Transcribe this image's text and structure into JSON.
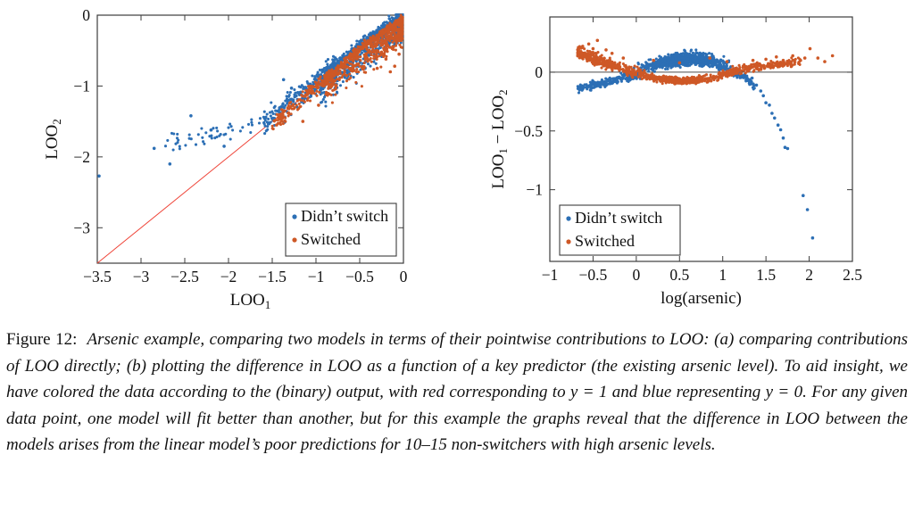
{
  "caption": {
    "label": "Figure 12:",
    "body": "Arsenic example, comparing two models in terms of their pointwise contributions to LOO: (a) comparing contributions of LOO directly; (b) plotting the difference in LOO as a function of a key predictor (the existing arsenic level). To aid insight, we have colored the data according to the (binary) output, with red corresponding to y = 1 and blue representing y = 0. For any given data point, one model will fit better than another, but for this example the graphs reveal that the difference in LOO between the models arises from the linear model’s poor predictions for 10–15 non-switchers with high arsenic levels."
  },
  "colors": {
    "blue": "#2C6FB5",
    "orange": "#CE5826",
    "red_line": "#EF4438",
    "zero_line": "#4a4a4a",
    "axis": "#3c3c3c"
  },
  "chart_data": [
    {
      "type": "scatter",
      "panel": "a",
      "xlabel_parts": [
        {
          "text": "LOO"
        },
        {
          "text": "1",
          "sub": true
        }
      ],
      "ylabel_parts": [
        {
          "text": "LOO"
        },
        {
          "text": "2",
          "sub": true
        }
      ],
      "xlim": [
        -3.5,
        0
      ],
      "ylim": [
        -3.5,
        0
      ],
      "x_ticks": {
        "values": [
          -3.5,
          -3,
          -2.5,
          -2,
          -1.5,
          -1,
          -0.5,
          0
        ],
        "labels": [
          "−3.5",
          "−3",
          "−2.5",
          "−2",
          "−1.5",
          "−1",
          "−0.5",
          "0"
        ]
      },
      "y_ticks": {
        "values": [
          0,
          -1,
          -2,
          -3
        ],
        "labels": [
          "0",
          "−1",
          "−2",
          "−3"
        ]
      },
      "reference_line": {
        "kind": "identity",
        "x1": -3.5,
        "y1": -3.5,
        "x2": 0,
        "y2": 0,
        "color_key": "red_line"
      },
      "legend": {
        "position": "bottom-right",
        "entries": [
          {
            "label": "Didn’t switch",
            "color_key": "blue"
          },
          {
            "label": "Switched",
            "color_key": "orange"
          }
        ]
      },
      "series": [
        {
          "name": "Didn't switch",
          "color_key": "blue",
          "seed": 11,
          "clouds": [
            {
              "count": 50,
              "x_range": [
                -2.75,
                -1.55
              ],
              "bias": "uniform",
              "power": 1,
              "curve": [
                [
                  -2.75,
                  -1.85
                ],
                [
                  -2.3,
                  -1.7
                ],
                [
                  -1.9,
                  -1.62
                ],
                [
                  -1.55,
                  -1.45
                ]
              ],
              "jitter_up": 0.13,
              "jitter_down": 0.13
            },
            {
              "count": 230,
              "x_range": [
                -1.6,
                -0.8
              ],
              "bias": "end",
              "power": 1.2,
              "curve": [
                [
                  -1.6,
                  -1.52
                ],
                [
                  -1.2,
                  -1.14
                ],
                [
                  -0.8,
                  -0.76
                ]
              ],
              "jitter_up": 0.14,
              "jitter_down": 0.14
            },
            {
              "count": 850,
              "x_range": [
                -0.95,
                -0.01
              ],
              "bias": "end",
              "power": 1.6,
              "curve": [
                [
                  -0.95,
                  -0.9
                ],
                [
                  -0.5,
                  -0.46
                ],
                [
                  -0.01,
                  -0.03
                ]
              ],
              "jitter_up": 0.09,
              "jitter_down": 0.3
            }
          ],
          "outliers": [
            [
              -3.48,
              -2.27
            ],
            [
              -2.85,
              -1.88
            ],
            [
              -2.67,
              -2.1
            ],
            [
              -2.43,
              -1.42
            ],
            [
              -2.2,
              -1.62
            ],
            [
              -2.05,
              -1.85
            ],
            [
              -1.37,
              -0.91
            ],
            [
              -1.28,
              -1.03
            ]
          ]
        },
        {
          "name": "Switched",
          "color_key": "orange",
          "seed": 22,
          "clouds": [
            {
              "count": 180,
              "x_range": [
                -1.5,
                -0.8
              ],
              "bias": "end",
              "power": 1.2,
              "curve": [
                [
                  -1.5,
                  -1.53
                ],
                [
                  -1.1,
                  -1.12
                ],
                [
                  -0.8,
                  -0.82
                ]
              ],
              "jitter_up": 0.08,
              "jitter_down": 0.1
            },
            {
              "count": 800,
              "x_range": [
                -0.9,
                -0.01
              ],
              "bias": "end",
              "power": 1.5,
              "curve": [
                [
                  -0.9,
                  -0.93
                ],
                [
                  -0.5,
                  -0.5
                ],
                [
                  -0.01,
                  -0.08
                ]
              ],
              "jitter_up": 0.06,
              "jitter_down": 0.28
            }
          ],
          "outliers": [
            [
              -1.45,
              -1.55
            ],
            [
              -1.15,
              -1.5
            ],
            [
              -0.58,
              -0.75
            ],
            [
              -0.97,
              -1.27
            ],
            [
              -0.2,
              -0.62
            ],
            [
              -0.1,
              -0.72
            ],
            [
              -0.05,
              -0.55
            ],
            [
              -0.15,
              -0.8
            ],
            [
              -0.3,
              -0.75
            ]
          ]
        }
      ]
    },
    {
      "type": "scatter",
      "panel": "b",
      "xlabel_parts": [
        {
          "text": "log(arsenic)"
        }
      ],
      "ylabel_parts": [
        {
          "text": "LOO"
        },
        {
          "text": "1",
          "sub": true
        },
        {
          "text": " − "
        },
        {
          "text": "LOO"
        },
        {
          "text": "2",
          "sub": true
        }
      ],
      "xlim": [
        -1,
        2.5
      ],
      "ylim": [
        -1.61,
        0.47
      ],
      "x_ticks": {
        "values": [
          -1,
          -0.5,
          0,
          0.5,
          1,
          1.5,
          2,
          2.5
        ],
        "labels": [
          "−1",
          "−0.5",
          "0",
          "0.5",
          "1",
          "1.5",
          "2",
          "2.5"
        ]
      },
      "y_ticks": {
        "values": [
          0,
          -0.5,
          -1
        ],
        "labels": [
          "0",
          "−0.5",
          "−1"
        ]
      },
      "reference_line": {
        "kind": "hline",
        "y": 0,
        "color_key": "zero_line"
      },
      "legend": {
        "position": "bottom-left",
        "entries": [
          {
            "label": "Didn’t switch",
            "color_key": "blue"
          },
          {
            "label": "Switched",
            "color_key": "orange"
          }
        ]
      },
      "series": [
        {
          "name": "Didn't switch",
          "color_key": "blue",
          "seed": 33,
          "clouds": [
            {
              "count": 230,
              "x_range": [
                -0.68,
                0.05
              ],
              "bias": "uniform",
              "power": 1,
              "curve": [
                [
                  -0.68,
                  -0.14
                ],
                [
                  -0.4,
                  -0.1
                ],
                [
                  -0.15,
                  -0.05
                ],
                [
                  0.05,
                  -0.01
                ]
              ],
              "jitter_up": 0.03,
              "jitter_down": 0.03
            },
            {
              "count": 800,
              "x_range": [
                -0.05,
                1.2
              ],
              "bias": "center",
              "power": 1,
              "curve": [
                [
                  -0.05,
                  0.0
                ],
                [
                  0.2,
                  0.06
                ],
                [
                  0.5,
                  0.1
                ],
                [
                  0.7,
                  0.11
                ],
                [
                  0.9,
                  0.09
                ],
                [
                  1.05,
                  0.04
                ],
                [
                  1.2,
                  -0.02
                ]
              ],
              "jitter_up": 0.05,
              "jitter_down": 0.04
            },
            {
              "count": 60,
              "x_range": [
                1.12,
                1.38
              ],
              "bias": "uniform",
              "power": 1,
              "curve": [
                [
                  1.12,
                  0.0
                ],
                [
                  1.25,
                  -0.04
                ],
                [
                  1.38,
                  -0.13
                ]
              ],
              "jitter_up": 0.025,
              "jitter_down": 0.025
            }
          ],
          "outliers": [
            [
              1.34,
              -0.05
            ],
            [
              1.39,
              -0.11
            ],
            [
              1.44,
              -0.16
            ],
            [
              1.47,
              -0.2
            ],
            [
              1.5,
              -0.26
            ],
            [
              1.54,
              -0.28
            ],
            [
              1.57,
              -0.35
            ],
            [
              1.6,
              -0.39
            ],
            [
              1.64,
              -0.45
            ],
            [
              1.67,
              -0.49
            ],
            [
              1.7,
              -0.56
            ],
            [
              1.72,
              -0.64
            ],
            [
              1.75,
              -0.65
            ],
            [
              1.93,
              -1.05
            ],
            [
              1.98,
              -1.17
            ],
            [
              2.04,
              -1.41
            ]
          ]
        },
        {
          "name": "Switched",
          "color_key": "orange",
          "seed": 44,
          "clouds": [
            {
              "count": 340,
              "x_range": [
                -0.68,
                0.1
              ],
              "bias": "start",
              "power": 1.3,
              "curve": [
                [
                  -0.68,
                  0.16
                ],
                [
                  -0.5,
                  0.11
                ],
                [
                  -0.3,
                  0.06
                ],
                [
                  -0.1,
                  0.01
                ],
                [
                  0.1,
                  -0.03
                ]
              ],
              "jitter_up": 0.055,
              "jitter_down": 0.03
            },
            {
              "count": 450,
              "x_range": [
                0.05,
                1.0
              ],
              "bias": "center",
              "power": 1,
              "curve": [
                [
                  0.05,
                  -0.03
                ],
                [
                  0.3,
                  -0.06
                ],
                [
                  0.55,
                  -0.075
                ],
                [
                  0.8,
                  -0.06
                ],
                [
                  1.0,
                  -0.03
                ]
              ],
              "jitter_up": 0.022,
              "jitter_down": 0.022
            },
            {
              "count": 260,
              "x_range": [
                0.95,
                1.9
              ],
              "bias": "start",
              "power": 1.2,
              "curve": [
                [
                  0.95,
                  -0.03
                ],
                [
                  1.2,
                  0.02
                ],
                [
                  1.5,
                  0.05
                ],
                [
                  1.9,
                  0.09
                ]
              ],
              "jitter_up": 0.03,
              "jitter_down": 0.025
            }
          ],
          "outliers": [
            [
              -0.62,
              0.22
            ],
            [
              -0.55,
              0.24
            ],
            [
              -0.45,
              0.27
            ],
            [
              -0.5,
              0.2
            ],
            [
              -0.35,
              0.19
            ],
            [
              -0.28,
              0.16
            ],
            [
              -0.15,
              0.12
            ],
            [
              0.2,
              0.1
            ],
            [
              0.5,
              0.08
            ],
            [
              0.85,
              0.12
            ],
            [
              1.05,
              0.09
            ],
            [
              1.35,
              0.1
            ],
            [
              1.5,
              0.11
            ],
            [
              1.62,
              0.13
            ],
            [
              1.7,
              0.1
            ],
            [
              1.81,
              0.14
            ],
            [
              1.9,
              0.1
            ],
            [
              1.95,
              0.12
            ],
            [
              2.01,
              0.2
            ],
            [
              2.1,
              0.12
            ],
            [
              2.18,
              0.09
            ],
            [
              2.27,
              0.14
            ]
          ]
        }
      ]
    }
  ]
}
